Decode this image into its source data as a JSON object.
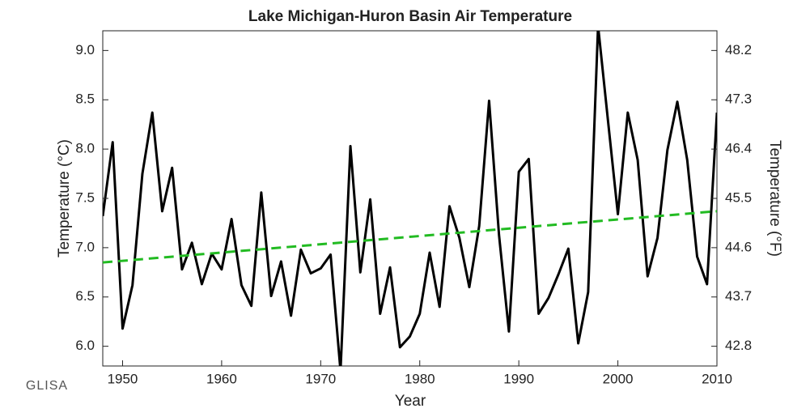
{
  "chart_data": {
    "type": "line",
    "title": "Lake Michigan-Huron Basin Air Temperature",
    "xlabel": "Year",
    "ylabel": "Temperature (°C)",
    "y2label": "Temperature (°F)",
    "logo": "GLISA",
    "x": [
      1948,
      1949,
      1950,
      1951,
      1952,
      1953,
      1954,
      1955,
      1956,
      1957,
      1958,
      1959,
      1960,
      1961,
      1962,
      1963,
      1964,
      1965,
      1966,
      1967,
      1968,
      1969,
      1970,
      1971,
      1972,
      1973,
      1974,
      1975,
      1976,
      1977,
      1978,
      1979,
      1980,
      1981,
      1982,
      1983,
      1984,
      1985,
      1986,
      1987,
      1988,
      1989,
      1990,
      1991,
      1992,
      1993,
      1994,
      1995,
      1996,
      1997,
      1998,
      1999,
      2000,
      2001,
      2002,
      2003,
      2004,
      2005,
      2006,
      2007,
      2008,
      2009,
      2010
    ],
    "series": [
      {
        "color": "#000000",
        "values": [
          7.32,
          8.07,
          6.18,
          6.62,
          7.75,
          8.37,
          7.37,
          7.81,
          6.78,
          7.05,
          6.63,
          6.94,
          6.78,
          7.29,
          6.62,
          6.41,
          7.56,
          6.51,
          6.86,
          6.31,
          6.98,
          6.74,
          6.79,
          6.93,
          5.75,
          8.03,
          6.75,
          7.49,
          6.33,
          6.8,
          5.99,
          6.1,
          6.33,
          6.95,
          6.4,
          7.42,
          7.1,
          6.6,
          7.22,
          8.49,
          7.13,
          6.15,
          7.77,
          7.9,
          6.33,
          6.49,
          6.73,
          6.99,
          6.03,
          6.55,
          9.25,
          8.29,
          7.34,
          8.37,
          7.89,
          6.71,
          7.1,
          7.99,
          8.48,
          7.89,
          6.91,
          6.63,
          8.37
        ]
      },
      {
        "color": "#22bb22",
        "dashed": true,
        "x": [
          1948,
          2010
        ],
        "values": [
          6.85,
          7.37
        ]
      }
    ],
    "xlim": [
      1948,
      2010
    ],
    "xticks": [
      1950,
      1960,
      1970,
      1980,
      1990,
      2000,
      2010
    ],
    "ylim": [
      5.8,
      9.2
    ],
    "yticks": [
      {
        "value": 6,
        "label": "6.0"
      },
      6.5,
      {
        "value": 7,
        "label": "7.0"
      },
      7.5,
      {
        "value": 8,
        "label": "8.0"
      },
      8.5,
      {
        "value": 9,
        "label": "9.0"
      }
    ],
    "y2lim": [
      42.44,
      48.56
    ],
    "y2ticks": [
      42.8,
      43.7,
      44.6,
      45.5,
      46.4,
      47.3,
      48.2
    ]
  }
}
